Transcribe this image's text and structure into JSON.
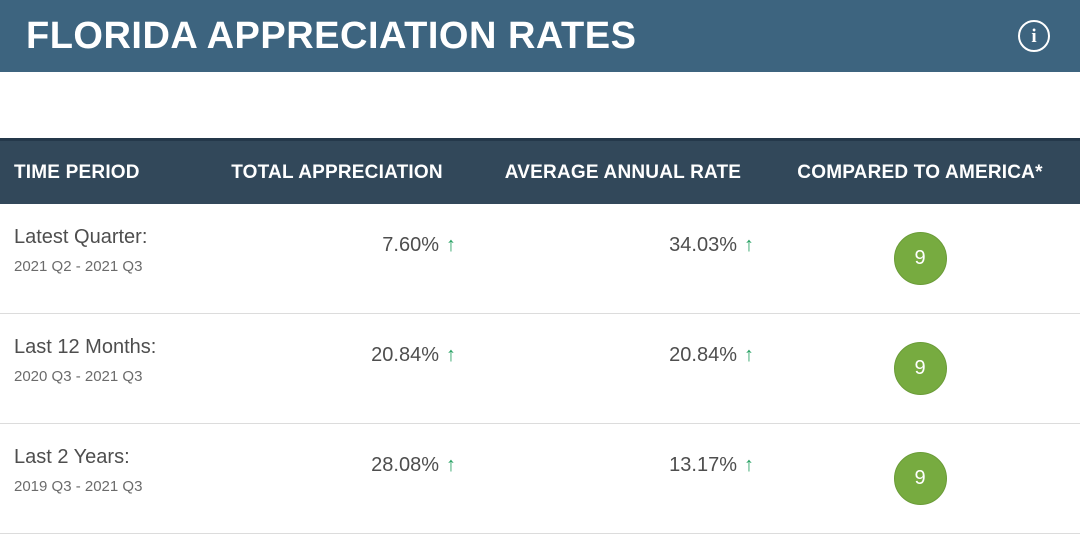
{
  "page": {
    "title": "FLORIDA APPRECIATION RATES"
  },
  "icons": {
    "info": "i",
    "up_arrow": "↑"
  },
  "colors": {
    "header_bar": "#3d647f",
    "table_header": "#32485a",
    "arrow_green": "#27a163",
    "badge_green": "#77ab40"
  },
  "table": {
    "columns": [
      {
        "label": "TIME PERIOD"
      },
      {
        "label": "TOTAL APPRECIATION"
      },
      {
        "label": "AVERAGE ANNUAL RATE"
      },
      {
        "label": "COMPARED TO AMERICA*"
      }
    ],
    "rows": [
      {
        "period_label": "Latest Quarter:",
        "period_range": "2021 Q2 - 2021 Q3",
        "total_appreciation": "7.60%",
        "average_annual_rate": "34.03%",
        "compared_to_america": "9"
      },
      {
        "period_label": "Last 12 Months:",
        "period_range": "2020 Q3 - 2021 Q3",
        "total_appreciation": "20.84%",
        "average_annual_rate": "20.84%",
        "compared_to_america": "9"
      },
      {
        "period_label": "Last 2 Years:",
        "period_range": "2019 Q3 - 2021 Q3",
        "total_appreciation": "28.08%",
        "average_annual_rate": "13.17%",
        "compared_to_america": "9"
      }
    ]
  }
}
